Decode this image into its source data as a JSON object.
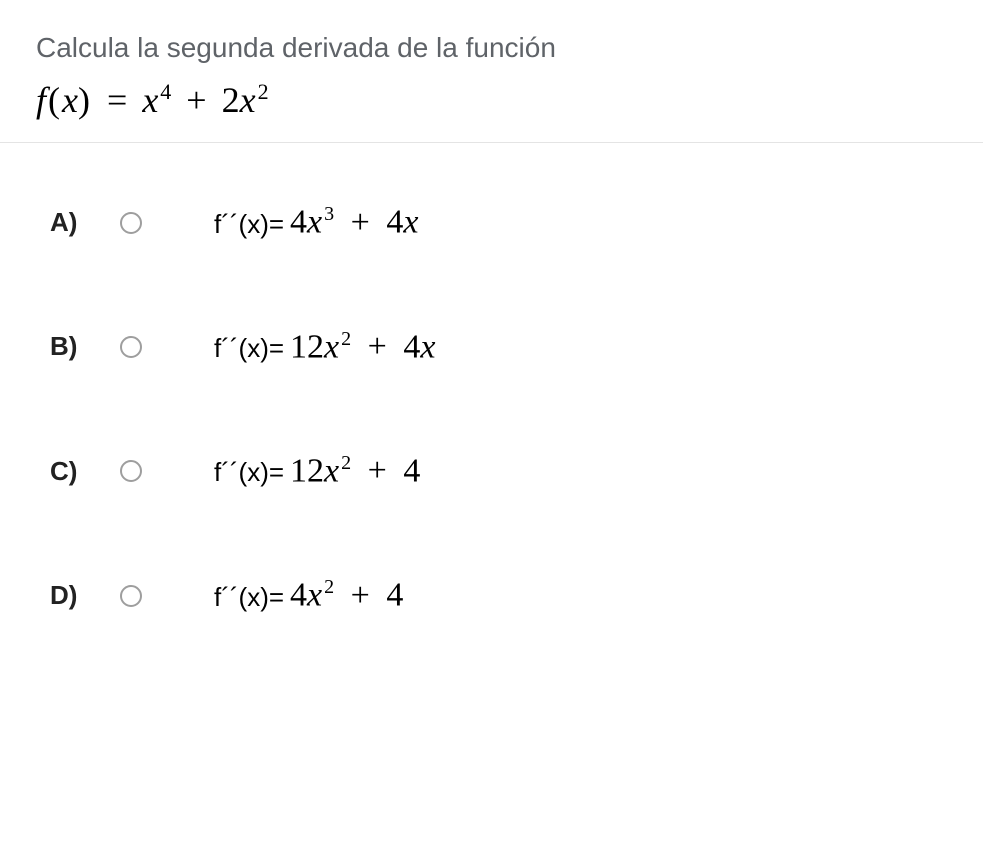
{
  "question": {
    "prompt": "Calcula la segunda derivada de la función",
    "formula_lhs": "f",
    "formula_var": "x",
    "formula_eq": "=",
    "term1_var": "x",
    "term1_exp": "4",
    "plus": "+",
    "term2_coef": "2",
    "term2_var": "x",
    "term2_exp": "2"
  },
  "options": [
    {
      "label": "A)",
      "prefix": "f´´(x)=",
      "coef1": "4",
      "var1": "x",
      "exp1": "3",
      "op": "+",
      "coef2": "4",
      "var2": "x",
      "exp2": ""
    },
    {
      "label": "B)",
      "prefix": "f´´(x)=",
      "coef1": "12",
      "var1": "x",
      "exp1": "2",
      "op": "+",
      "coef2": "4",
      "var2": "x",
      "exp2": ""
    },
    {
      "label": "C)",
      "prefix": "f´´(x)=",
      "coef1": "12",
      "var1": "x",
      "exp1": "2",
      "op": "+",
      "coef2": "4",
      "var2": "",
      "exp2": ""
    },
    {
      "label": "D)",
      "prefix": "f´´(x)=",
      "coef1": "4",
      "var1": "x",
      "exp1": "2",
      "op": "+",
      "coef2": "4",
      "var2": "",
      "exp2": ""
    }
  ],
  "colors": {
    "question_text": "#5f6368",
    "formula_text": "#000000",
    "option_label": "#222222",
    "radio_border": "#9e9e9e",
    "divider": "#e4e4e4",
    "background": "#ffffff"
  },
  "typography": {
    "question_fontsize": 28,
    "formula_fontsize": 36,
    "option_label_fontsize": 26,
    "option_formula_fontsize": 26,
    "option_math_fontsize": 34
  }
}
